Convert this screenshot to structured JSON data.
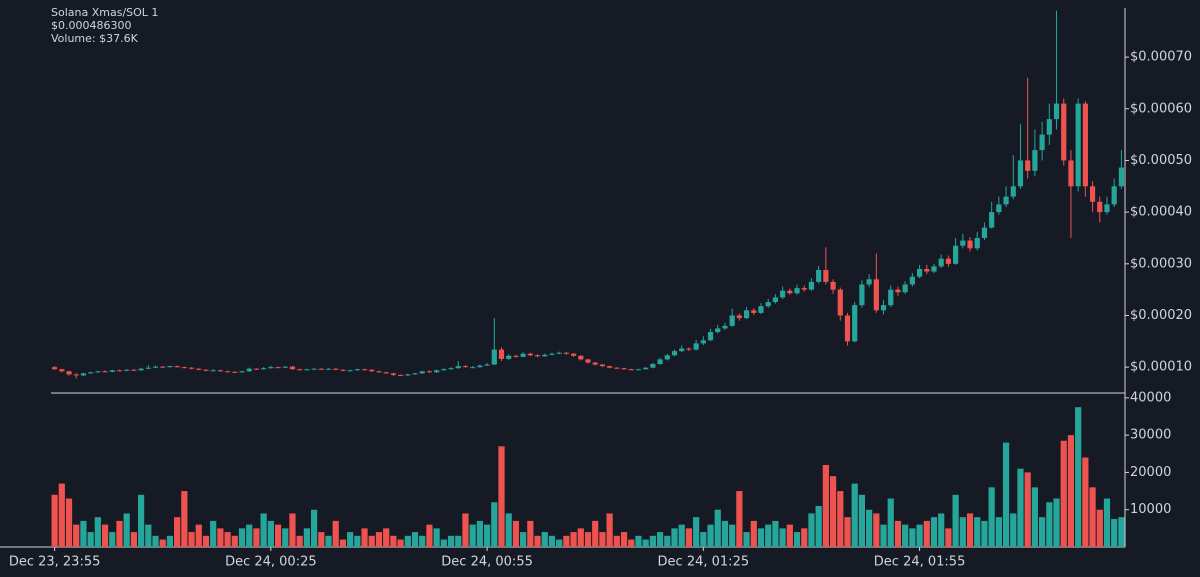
{
  "chart_data": [
    {
      "type": "candlestick",
      "title": "Solana Xmas/SOL 1",
      "price_label": "$0.000486300",
      "volume_label": "Volume: $37.6K",
      "up_color": "#26a69a",
      "down_color": "#ef5350",
      "x": [
        0,
        1,
        2,
        3,
        4,
        5,
        6,
        7,
        8,
        9,
        10,
        11,
        12,
        13,
        14,
        15,
        16,
        17,
        18,
        19,
        20,
        21,
        22,
        23,
        24,
        25,
        26,
        27,
        28,
        29,
        30,
        31,
        32,
        33,
        34,
        35,
        36,
        37,
        38,
        39,
        40,
        41,
        42,
        43,
        44,
        45,
        46,
        47,
        48,
        49,
        50,
        51,
        52,
        53,
        54,
        55,
        56,
        57,
        58,
        59,
        60,
        61,
        62,
        63,
        64,
        65,
        66,
        67,
        68,
        69,
        70,
        71,
        72,
        73,
        74,
        75,
        76,
        77,
        78,
        79,
        80,
        81,
        82,
        83,
        84,
        85,
        86,
        87,
        88,
        89,
        90,
        91,
        92,
        93,
        94,
        95,
        96,
        97,
        98,
        99,
        100,
        101,
        102,
        103,
        104,
        105,
        106,
        107,
        108,
        109,
        110,
        111,
        112,
        113,
        114,
        115,
        116,
        117,
        118,
        119,
        120,
        121,
        122,
        123,
        124,
        125,
        126,
        127,
        128,
        129,
        130,
        131,
        132,
        133,
        134,
        135,
        136,
        137,
        138,
        139,
        140,
        141,
        142,
        143,
        144,
        145,
        146,
        147,
        148
      ],
      "open": [
        0.0001,
        9.6e-05,
        9.2e-05,
        8.6e-05,
        8.4e-05,
        8.8e-05,
        9e-05,
        9.2e-05,
        9.1e-05,
        9.4e-05,
        9.3e-05,
        9.5e-05,
        9.4e-05,
        9.7e-05,
        9.9e-05,
        0.000101,
        0.0001,
        0.000102,
        0.0001,
        9.9e-05,
        9.7e-05,
        9.5e-05,
        9.3e-05,
        9.4e-05,
        9.2e-05,
        9.1e-05,
        9e-05,
        9.2e-05,
        9.7e-05,
        9.6e-05,
        9.8e-05,
        0.0001,
        9.9e-05,
        0.000101,
        9.6e-05,
        9.5e-05,
        9.6e-05,
        9.7e-05,
        9.6e-05,
        9.7e-05,
        9.5e-05,
        9.3e-05,
        9.4e-05,
        9.6e-05,
        9.5e-05,
        9.2e-05,
        9e-05,
        8.8e-05,
        8.5e-05,
        8.4e-05,
        8.6e-05,
        8.8e-05,
        9.2e-05,
        9e-05,
        9.4e-05,
        9.6e-05,
        9.8e-05,
        0.000102,
        0.0001,
        0.0001,
        0.000103,
        0.000105,
        0.000134,
        0.000116,
        0.000122,
        0.00012,
        0.000126,
        0.000123,
        0.000121,
        0.000124,
        0.000126,
        0.000128,
        0.000126,
        0.000122,
        0.000115,
        0.000109,
        0.000105,
        0.000102,
        9.9e-05,
        9.8e-05,
        9.6e-05,
        9.5e-05,
        9.6e-05,
        9.9e-05,
        0.000106,
        0.000115,
        0.000123,
        0.000131,
        0.000136,
        0.000134,
        0.000146,
        0.000152,
        0.000168,
        0.000175,
        0.00018,
        0.0002,
        0.000195,
        0.00021,
        0.000205,
        0.000218,
        0.000226,
        0.000235,
        0.000248,
        0.000243,
        0.000253,
        0.00025,
        0.000265,
        0.000288,
        0.000265,
        0.00025,
        0.0002,
        0.00015,
        0.00022,
        0.00026,
        0.00027,
        0.00021,
        0.00022,
        0.00025,
        0.000245,
        0.00026,
        0.000275,
        0.00029,
        0.000285,
        0.000295,
        0.00031,
        0.0003,
        0.000335,
        0.000345,
        0.00033,
        0.00035,
        0.00037,
        0.0004,
        0.000415,
        0.00043,
        0.00045,
        0.0005,
        0.00048,
        0.00052,
        0.00055,
        0.00058,
        0.00061,
        0.0005,
        0.00045,
        0.00061,
        0.00045,
        0.00042,
        0.0004,
        0.000415,
        0.00045
      ],
      "high": [
        0.000102,
        9.7e-05,
        9.3e-05,
        8.8e-05,
        8.9e-05,
        9.1e-05,
        9.3e-05,
        9.4e-05,
        9.5e-05,
        9.5e-05,
        9.6e-05,
        9.6e-05,
        9.9e-05,
        0.000104,
        0.000103,
        0.000102,
        0.000103,
        0.000103,
        0.000101,
        0.0001,
        9.8e-05,
        9.6e-05,
        9.6e-05,
        9.5e-05,
        9.3e-05,
        9.2e-05,
        9.3e-05,
        9.9e-05,
        9.8e-05,
        0.0001,
        0.000103,
        0.000101,
        0.000102,
        0.000102,
        9.7e-05,
        9.7e-05,
        9.8e-05,
        9.8e-05,
        9.8e-05,
        9.8e-05,
        9.6e-05,
        9.5e-05,
        9.7e-05,
        9.7e-05,
        9.6e-05,
        9.3e-05,
        9.1e-05,
        8.9e-05,
        8.6e-05,
        8.7e-05,
        8.9e-05,
        9.3e-05,
        9.4e-05,
        9.5e-05,
        9.8e-05,
        0.0001,
        0.000112,
        0.000104,
        0.000102,
        0.000105,
        0.000108,
        0.000195,
        0.000138,
        0.000125,
        0.000124,
        0.000129,
        0.000128,
        0.000125,
        0.000126,
        0.000128,
        0.00013,
        0.000129,
        0.000127,
        0.000123,
        0.000116,
        0.00011,
        0.000106,
        0.000103,
        0.0001,
        9.9e-05,
        9.7e-05,
        9.7e-05,
        0.0001,
        0.000108,
        0.000118,
        0.000126,
        0.000134,
        0.000142,
        0.000138,
        0.000153,
        0.00016,
        0.000174,
        0.000182,
        0.000186,
        0.000213,
        0.000204,
        0.000216,
        0.000214,
        0.000224,
        0.000232,
        0.000241,
        0.000256,
        0.000252,
        0.00026,
        0.000258,
        0.000272,
        0.000296,
        0.000332,
        0.00027,
        0.000254,
        0.000205,
        0.000226,
        0.000268,
        0.00028,
        0.00032,
        0.00023,
        0.000258,
        0.000256,
        0.000266,
        0.000282,
        0.000298,
        0.000298,
        0.0003,
        0.000318,
        0.000316,
        0.00035,
        0.000358,
        0.000352,
        0.000362,
        0.00038,
        0.00042,
        0.00043,
        0.00045,
        0.00051,
        0.00057,
        0.00066,
        0.00056,
        0.000575,
        0.00061,
        0.00079,
        0.00062,
        0.00052,
        0.00062,
        0.000615,
        0.00046,
        0.00043,
        0.00043,
        0.000465,
        0.00052
      ],
      "low": [
        9.5e-05,
        9e-05,
        8.4e-05,
        7.8e-05,
        8.3e-05,
        8.7e-05,
        8.9e-05,
        9e-05,
        9e-05,
        9.2e-05,
        9.2e-05,
        9.3e-05,
        9.3e-05,
        9.6e-05,
        9.8e-05,
        9.9e-05,
        9.9e-05,
        9.9e-05,
        9.8e-05,
        9.6e-05,
        9.4e-05,
        9.2e-05,
        9.2e-05,
        9.1e-05,
        9e-05,
        8.9e-05,
        8.9e-05,
        9.1e-05,
        9.5e-05,
        9.5e-05,
        9.7e-05,
        9.8e-05,
        9.8e-05,
        9.5e-05,
        9.4e-05,
        9.4e-05,
        9.5e-05,
        9.5e-05,
        9.5e-05,
        9.4e-05,
        9.2e-05,
        9.2e-05,
        9.3e-05,
        9.4e-05,
        9.1e-05,
        8.9e-05,
        8.7e-05,
        8.3e-05,
        8.3e-05,
        8.3e-05,
        8.5e-05,
        8.7e-05,
        8.9e-05,
        8.9e-05,
        9.3e-05,
        9.5e-05,
        9.7e-05,
        9.9e-05,
        9.8e-05,
        9.9e-05,
        0.000102,
        0.000104,
        0.000112,
        0.000114,
        0.000118,
        0.000119,
        0.000121,
        0.000119,
        0.00012,
        0.000123,
        0.000125,
        0.000124,
        0.00012,
        0.000113,
        0.000107,
        0.000103,
        0.0001,
        9.8e-05,
        9.7e-05,
        9.5e-05,
        9.4e-05,
        9.4e-05,
        9.5e-05,
        9.8e-05,
        0.000105,
        0.000113,
        0.000121,
        0.000129,
        0.000131,
        0.000132,
        0.000143,
        0.00015,
        0.000165,
        0.000172,
        0.000178,
        0.00019,
        0.000193,
        0.000201,
        0.000203,
        0.000215,
        0.000223,
        0.000232,
        0.00024,
        0.00024,
        0.000246,
        0.000248,
        0.000262,
        0.00026,
        0.000242,
        0.00019,
        0.000142,
        0.000148,
        0.000215,
        0.000255,
        0.000205,
        0.000202,
        0.000216,
        0.000238,
        0.000242,
        0.000256,
        0.000272,
        0.00028,
        0.000282,
        0.000292,
        0.000294,
        0.000298,
        0.00033,
        0.000324,
        0.000326,
        0.000346,
        0.000368,
        0.000395,
        0.00041,
        0.000425,
        0.000445,
        0.000465,
        0.00047,
        0.0005,
        0.00053,
        0.00056,
        0.00049,
        0.00035,
        0.00044,
        0.00043,
        0.0004,
        0.00038,
        0.000395,
        0.00041,
        0.000445
      ],
      "close": [
        9.6e-05,
        9.2e-05,
        8.6e-05,
        8.4e-05,
        8.8e-05,
        9e-05,
        9.2e-05,
        9.1e-05,
        9.4e-05,
        9.3e-05,
        9.5e-05,
        9.4e-05,
        9.7e-05,
        9.9e-05,
        0.000101,
        0.0001,
        0.000102,
        0.0001,
        9.9e-05,
        9.7e-05,
        9.5e-05,
        9.3e-05,
        9.4e-05,
        9.2e-05,
        9.1e-05,
        9e-05,
        9.2e-05,
        9.7e-05,
        9.6e-05,
        9.8e-05,
        0.0001,
        9.9e-05,
        0.000101,
        9.6e-05,
        9.5e-05,
        9.6e-05,
        9.7e-05,
        9.6e-05,
        9.7e-05,
        9.5e-05,
        9.3e-05,
        9.4e-05,
        9.6e-05,
        9.5e-05,
        9.2e-05,
        9e-05,
        8.8e-05,
        8.5e-05,
        8.4e-05,
        8.6e-05,
        8.8e-05,
        9.2e-05,
        9e-05,
        9.4e-05,
        9.6e-05,
        9.8e-05,
        0.000102,
        0.0001,
        0.0001,
        0.000103,
        0.000105,
        0.000134,
        0.000116,
        0.000122,
        0.00012,
        0.000126,
        0.000123,
        0.000121,
        0.000124,
        0.000126,
        0.000128,
        0.000126,
        0.000122,
        0.000115,
        0.000109,
        0.000105,
        0.000102,
        9.9e-05,
        9.8e-05,
        9.6e-05,
        9.5e-05,
        9.6e-05,
        9.9e-05,
        0.000106,
        0.000115,
        0.000123,
        0.000131,
        0.000136,
        0.000134,
        0.000146,
        0.000152,
        0.000168,
        0.000175,
        0.00018,
        0.0002,
        0.000195,
        0.00021,
        0.000205,
        0.000218,
        0.000226,
        0.000235,
        0.000248,
        0.000243,
        0.000253,
        0.00025,
        0.000265,
        0.000288,
        0.000265,
        0.00025,
        0.0002,
        0.00015,
        0.00022,
        0.00026,
        0.00027,
        0.00021,
        0.00022,
        0.00025,
        0.000245,
        0.00026,
        0.000275,
        0.00029,
        0.000285,
        0.000295,
        0.00031,
        0.0003,
        0.000335,
        0.000345,
        0.00033,
        0.00035,
        0.00037,
        0.0004,
        0.000415,
        0.00043,
        0.00045,
        0.0005,
        0.00048,
        0.00052,
        0.00055,
        0.00058,
        0.00061,
        0.0005,
        0.00045,
        0.00061,
        0.00045,
        0.00042,
        0.0004,
        0.000415,
        0.00045,
        0.0004863
      ],
      "xlim": [
        -0.5,
        148.5
      ],
      "xticks": [
        {
          "value": 0,
          "label": "Dec 23, 23:55"
        },
        {
          "value": 30,
          "label": "Dec 24, 00:25"
        },
        {
          "value": 60,
          "label": "Dec 24, 00:55"
        },
        {
          "value": 90,
          "label": "Dec 24, 01:25"
        },
        {
          "value": 120,
          "label": "Dec 24, 01:55"
        }
      ],
      "ylim": [
        5e-05,
        0.000795
      ],
      "yticks": [
        {
          "value": 0.0001,
          "label": "$0.00010"
        },
        {
          "value": 0.0002,
          "label": "$0.00020"
        },
        {
          "value": 0.0003,
          "label": "$0.00030"
        },
        {
          "value": 0.0004,
          "label": "$0.00040"
        },
        {
          "value": 0.0005,
          "label": "$0.00050"
        },
        {
          "value": 0.0006,
          "label": "$0.00060"
        },
        {
          "value": 0.0007,
          "label": "$0.00070"
        }
      ]
    },
    {
      "type": "bar",
      "name": "volume",
      "values": [
        14000,
        17000,
        13000,
        6000,
        7000,
        4000,
        8000,
        6000,
        4000,
        7000,
        9000,
        4000,
        14000,
        6000,
        3000,
        2000,
        3000,
        8000,
        15000,
        4000,
        6000,
        3000,
        7000,
        5000,
        4000,
        3000,
        5000,
        6000,
        5000,
        9000,
        7000,
        6000,
        5000,
        9000,
        3000,
        5000,
        10000,
        4000,
        3000,
        7000,
        2000,
        4000,
        3000,
        5000,
        3000,
        4000,
        5000,
        3000,
        2000,
        3000,
        4000,
        3000,
        6000,
        5000,
        2000,
        3000,
        3000,
        9000,
        6000,
        7000,
        6000,
        12000,
        27000,
        9000,
        7000,
        4000,
        7000,
        3000,
        4000,
        3000,
        2000,
        3000,
        4000,
        5000,
        4000,
        7000,
        4000,
        9000,
        3000,
        4000,
        2000,
        3000,
        2000,
        3000,
        4000,
        3000,
        5000,
        6000,
        5000,
        8000,
        4000,
        6000,
        10000,
        7000,
        6000,
        15000,
        4000,
        7000,
        5000,
        6000,
        7000,
        5000,
        6000,
        4000,
        5000,
        9000,
        11000,
        22000,
        19000,
        15000,
        8000,
        17000,
        14000,
        10000,
        9000,
        6000,
        13000,
        7000,
        6000,
        5000,
        6000,
        7000,
        8000,
        9000,
        5000,
        14000,
        8000,
        9000,
        8000,
        7000,
        16000,
        8000,
        28000,
        9000,
        21000,
        20000,
        16000,
        8000,
        12000,
        13000,
        28500,
        30000,
        37500,
        24000,
        16000,
        10000,
        13000,
        7500,
        8000
      ],
      "ylim": [
        0,
        41300
      ],
      "yticks": [
        10000,
        20000,
        30000,
        40000
      ]
    }
  ]
}
